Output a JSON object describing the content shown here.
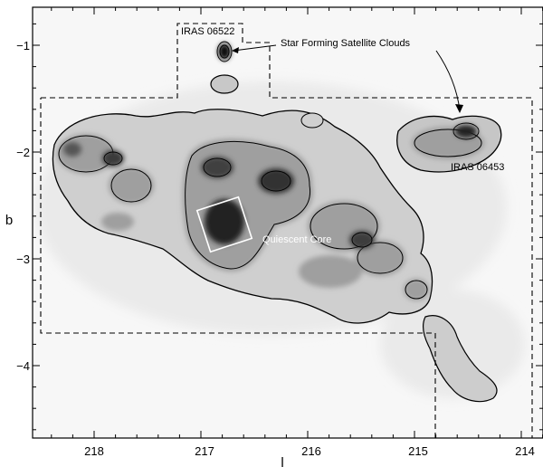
{
  "figure": {
    "xlabel": "l",
    "ylabel": "b",
    "x_ticks": [
      "218",
      "217",
      "216",
      "215",
      "214"
    ],
    "y_ticks": [
      "−1",
      "−2",
      "−3",
      "−4"
    ],
    "annotations": {
      "iras_06522": "IRAS 06522",
      "satellite_clouds": "Star Forming Satellite Clouds",
      "iras_06453": "IRAS 06453",
      "quiescent_core": "Quiescent Core"
    }
  },
  "chart_data": {
    "type": "heatmap",
    "xlabel": "l",
    "ylabel": "b",
    "xlim": [
      218.5,
      213.9
    ],
    "ylim": [
      -4.7,
      -0.6
    ],
    "x_ticks": [
      218,
      217,
      216,
      215,
      214
    ],
    "y_ticks": [
      -1,
      -2,
      -3,
      -4
    ],
    "colormap": "grayscale",
    "contours": true,
    "labels": [
      {
        "text": "IRAS 06522",
        "l": 216.85,
        "b": -0.9
      },
      {
        "text": "Star Forming Satellite Clouds",
        "l": 215.9,
        "b": -1.0
      },
      {
        "text": "IRAS 06453",
        "l": 214.6,
        "b": -2.1
      },
      {
        "text": "Quiescent Core",
        "l": 216.3,
        "b": -2.85
      }
    ]
  }
}
